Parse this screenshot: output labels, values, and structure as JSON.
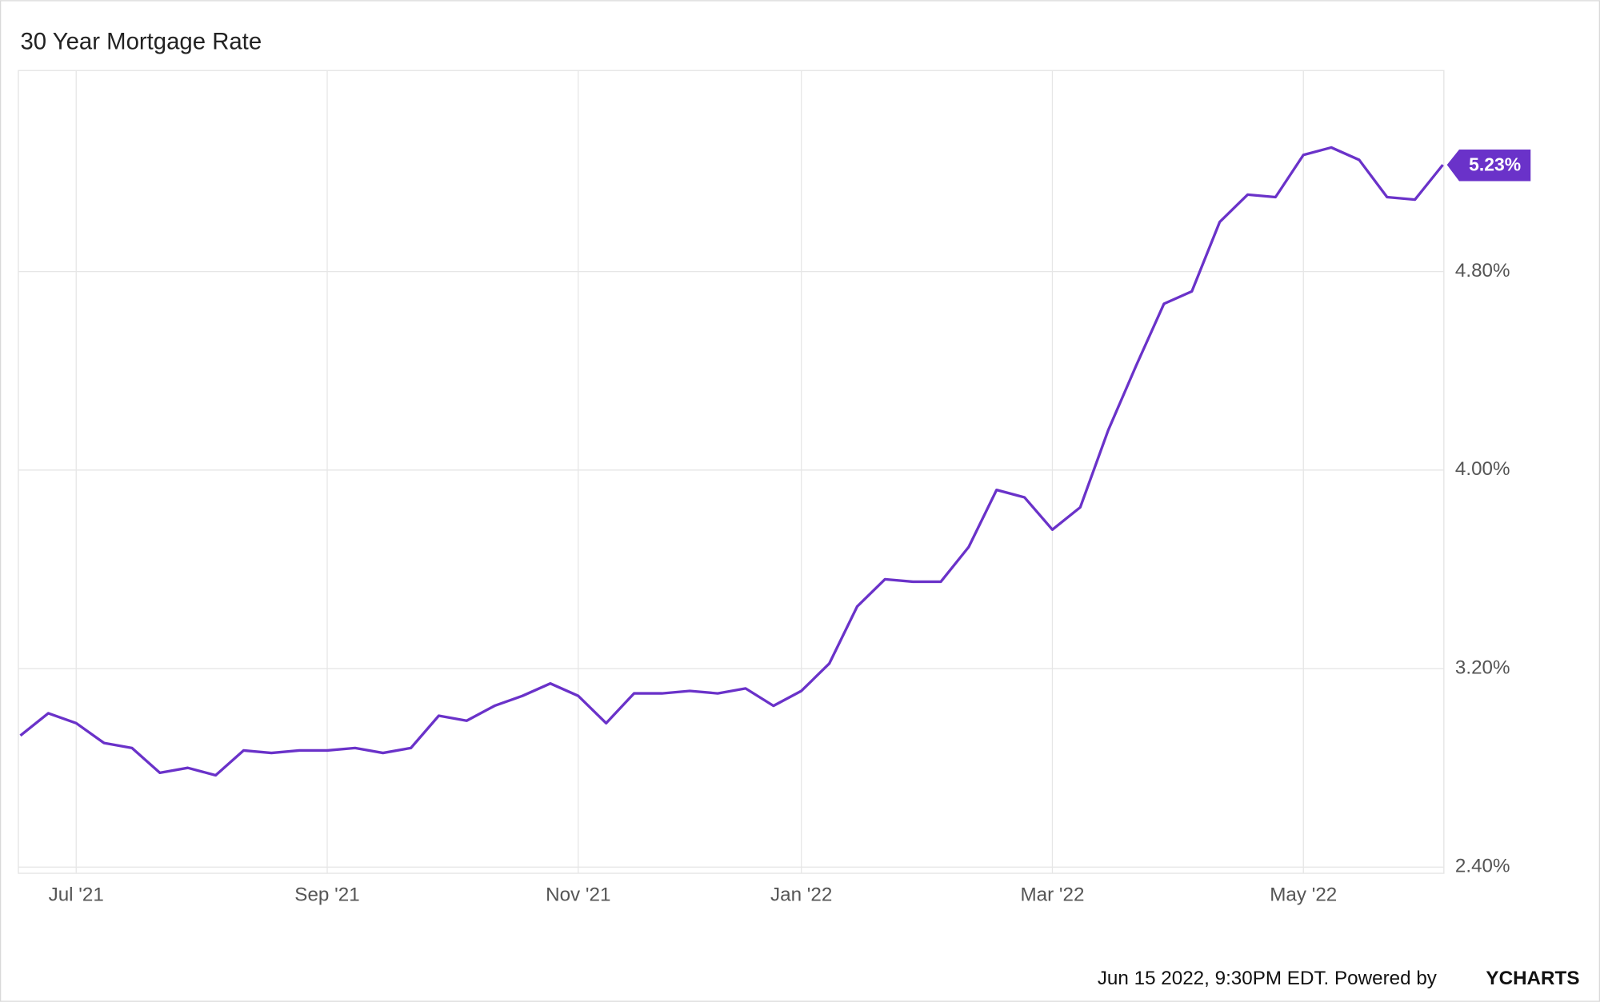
{
  "chart_data": {
    "type": "line",
    "title": "30 Year Mortgage Rate",
    "categories": [
      null,
      null,
      "Jul '21",
      null,
      null,
      null,
      null,
      null,
      null,
      null,
      null,
      "Sep '21",
      null,
      null,
      null,
      null,
      null,
      null,
      null,
      null,
      "Nov '21",
      null,
      null,
      null,
      null,
      null,
      null,
      null,
      "Jan '22",
      null,
      null,
      null,
      null,
      null,
      null,
      null,
      null,
      "Mar '22",
      null,
      null,
      null,
      null,
      null,
      null,
      null,
      null,
      "May '22",
      null,
      null,
      null,
      null,
      null
    ],
    "series": [
      {
        "name": "30 Year Mortgage Rate",
        "color": "#6a32c9",
        "values": [
          2.93,
          3.02,
          2.98,
          2.9,
          2.88,
          2.78,
          2.8,
          2.77,
          2.87,
          2.86,
          2.87,
          2.87,
          2.88,
          2.86,
          2.88,
          3.01,
          2.99,
          3.05,
          3.09,
          3.14,
          3.09,
          2.98,
          3.1,
          3.1,
          3.11,
          3.1,
          3.12,
          3.05,
          3.11,
          3.22,
          3.45,
          3.56,
          3.55,
          3.55,
          3.69,
          3.92,
          3.89,
          3.76,
          3.85,
          4.16,
          4.42,
          4.67,
          4.72,
          5.0,
          5.11,
          5.1,
          5.27,
          5.3,
          5.25,
          5.1,
          5.09,
          5.23
        ],
        "value_labels": [
          null,
          null,
          null,
          null,
          null,
          null,
          null,
          null,
          null,
          null,
          null,
          null,
          null,
          null,
          null,
          null,
          null,
          null,
          null,
          null,
          null,
          null,
          null,
          null,
          null,
          null,
          null,
          null,
          null,
          null,
          null,
          null,
          null,
          null,
          null,
          null,
          null,
          null,
          null,
          null,
          null,
          null,
          null,
          null,
          null,
          null,
          null,
          null,
          null,
          null,
          null,
          "5.23%"
        ]
      }
    ],
    "ylim": [
      2.375,
      5.61
    ],
    "yticks": [
      {
        "value": 2.4,
        "label": "2.40%"
      },
      {
        "value": 3.2,
        "label": "3.20%"
      },
      {
        "value": 4.0,
        "label": "4.00%"
      },
      {
        "value": 4.8,
        "label": "4.80%"
      }
    ],
    "grid": true,
    "footer": "Jun 15 2022, 9:30PM EDT. Powered by",
    "brand": "YCHARTS"
  }
}
